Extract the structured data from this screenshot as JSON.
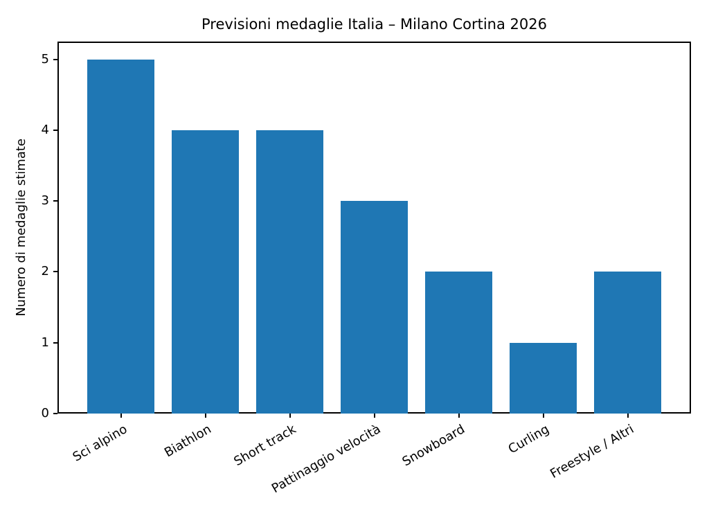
{
  "chart_data": {
    "type": "bar",
    "title": "Previsioni medaglie Italia – Milano Cortina 2026",
    "categories": [
      "Sci alpino",
      "Biathlon",
      "Short track",
      "Pattinaggio velocità",
      "Snowboard",
      "Curling",
      "Freestyle / Altri"
    ],
    "values": [
      5,
      4,
      4,
      3,
      2,
      1,
      2
    ],
    "xlabel": "",
    "ylabel": "Numero di medaglie stimate",
    "ylim": [
      0,
      5.25
    ],
    "xlim": [
      -0.75,
      6.75
    ],
    "yticks": [
      0,
      1,
      2,
      3,
      4,
      5
    ],
    "bar_color": "#1f77b4",
    "bar_width_fraction": 0.8,
    "xtick_rotation_deg": 30,
    "grid": false,
    "legend_position": "none"
  }
}
